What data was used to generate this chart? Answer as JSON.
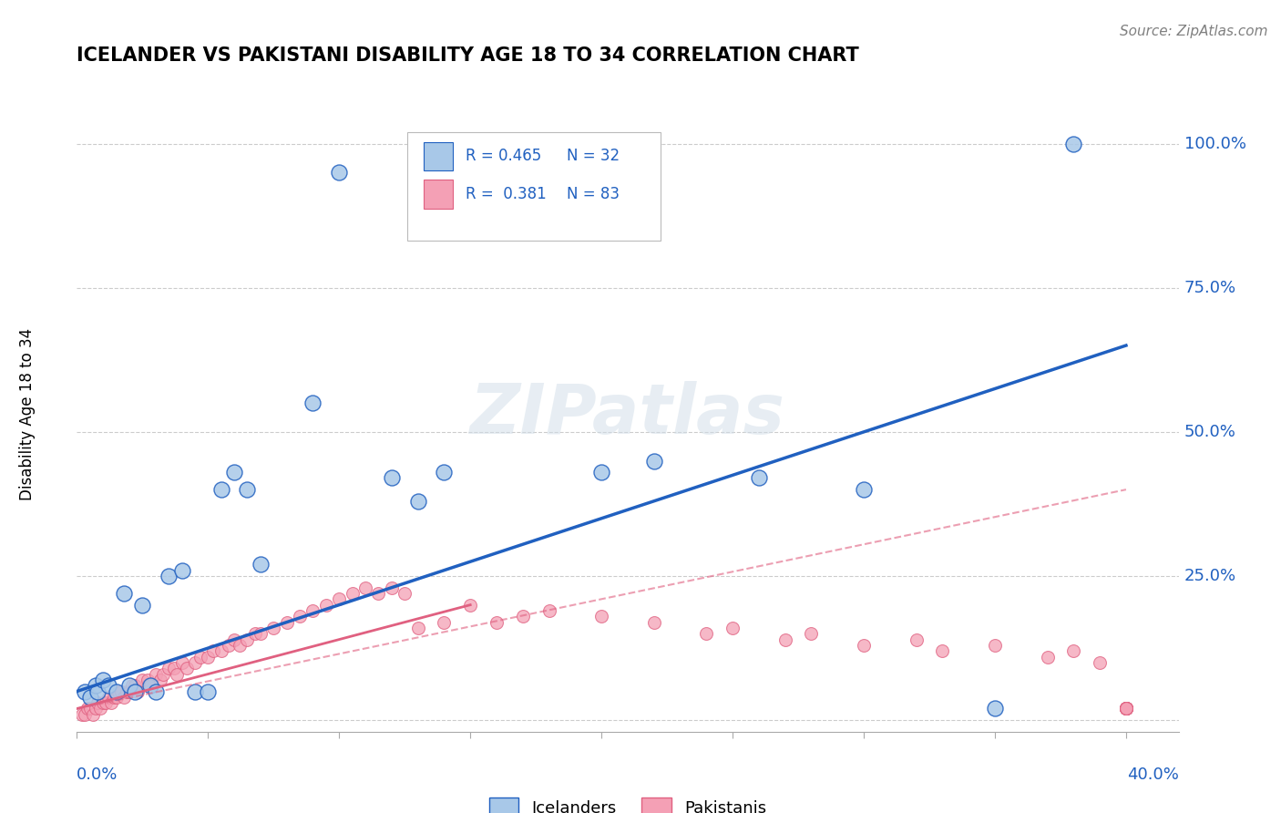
{
  "title": "ICELANDER VS PAKISTANI DISABILITY AGE 18 TO 34 CORRELATION CHART",
  "source": "Source: ZipAtlas.com",
  "ylabel": "Disability Age 18 to 34",
  "xlim": [
    0.0,
    0.42
  ],
  "ylim": [
    -0.02,
    1.08
  ],
  "r_icelander": 0.465,
  "n_icelander": 32,
  "r_pakistani": 0.381,
  "n_pakistani": 83,
  "icelander_color": "#a8c8e8",
  "pakistani_color": "#f4a0b5",
  "icelander_line_color": "#2060c0",
  "pakistani_line_color": "#e06080",
  "background_color": "#ffffff",
  "grid_color": "#cccccc",
  "watermark": "ZIPatlas",
  "icelander_scatter_x": [
    0.003,
    0.005,
    0.007,
    0.008,
    0.01,
    0.012,
    0.015,
    0.018,
    0.02,
    0.022,
    0.025,
    0.028,
    0.03,
    0.035,
    0.04,
    0.045,
    0.05,
    0.055,
    0.06,
    0.065,
    0.07,
    0.09,
    0.1,
    0.12,
    0.13,
    0.14,
    0.2,
    0.22,
    0.26,
    0.3,
    0.35,
    0.38
  ],
  "icelander_scatter_y": [
    0.05,
    0.04,
    0.06,
    0.05,
    0.07,
    0.06,
    0.05,
    0.22,
    0.06,
    0.05,
    0.2,
    0.06,
    0.05,
    0.25,
    0.26,
    0.05,
    0.05,
    0.4,
    0.43,
    0.4,
    0.27,
    0.55,
    0.95,
    0.42,
    0.38,
    0.43,
    0.43,
    0.45,
    0.42,
    0.4,
    0.02,
    1.0
  ],
  "pakistani_scatter_x": [
    0.002,
    0.003,
    0.004,
    0.005,
    0.006,
    0.007,
    0.008,
    0.009,
    0.01,
    0.011,
    0.012,
    0.013,
    0.014,
    0.015,
    0.016,
    0.017,
    0.018,
    0.019,
    0.02,
    0.021,
    0.022,
    0.023,
    0.025,
    0.027,
    0.028,
    0.03,
    0.032,
    0.033,
    0.035,
    0.037,
    0.038,
    0.04,
    0.042,
    0.045,
    0.047,
    0.05,
    0.052,
    0.055,
    0.058,
    0.06,
    0.062,
    0.065,
    0.068,
    0.07,
    0.075,
    0.08,
    0.085,
    0.09,
    0.095,
    0.1,
    0.105,
    0.11,
    0.115,
    0.12,
    0.125,
    0.13,
    0.14,
    0.15,
    0.16,
    0.17,
    0.18,
    0.2,
    0.22,
    0.24,
    0.25,
    0.27,
    0.28,
    0.3,
    0.32,
    0.33,
    0.35,
    0.37,
    0.38,
    0.39,
    0.4,
    0.4,
    0.4,
    0.4,
    0.4,
    0.4,
    0.4,
    0.4,
    0.4
  ],
  "pakistani_scatter_y": [
    0.01,
    0.01,
    0.02,
    0.02,
    0.01,
    0.02,
    0.03,
    0.02,
    0.03,
    0.03,
    0.04,
    0.03,
    0.04,
    0.04,
    0.05,
    0.05,
    0.04,
    0.05,
    0.05,
    0.06,
    0.06,
    0.05,
    0.07,
    0.07,
    0.06,
    0.08,
    0.07,
    0.08,
    0.09,
    0.09,
    0.08,
    0.1,
    0.09,
    0.1,
    0.11,
    0.11,
    0.12,
    0.12,
    0.13,
    0.14,
    0.13,
    0.14,
    0.15,
    0.15,
    0.16,
    0.17,
    0.18,
    0.19,
    0.2,
    0.21,
    0.22,
    0.23,
    0.22,
    0.23,
    0.22,
    0.16,
    0.17,
    0.2,
    0.17,
    0.18,
    0.19,
    0.18,
    0.17,
    0.15,
    0.16,
    0.14,
    0.15,
    0.13,
    0.14,
    0.12,
    0.13,
    0.11,
    0.12,
    0.1,
    0.02,
    0.02,
    0.02,
    0.02,
    0.02,
    0.02,
    0.02,
    0.02,
    0.02
  ],
  "icelander_trend_x0": 0.0,
  "icelander_trend_y0": 0.05,
  "icelander_trend_x1": 0.4,
  "icelander_trend_y1": 0.65,
  "pakistani_trend_solid_x0": 0.0,
  "pakistani_trend_solid_y0": 0.02,
  "pakistani_trend_solid_x1": 0.15,
  "pakistani_trend_solid_y1": 0.2,
  "pakistani_trend_dashed_x0": 0.0,
  "pakistani_trend_dashed_y0": 0.02,
  "pakistani_trend_dashed_x1": 0.4,
  "pakistani_trend_dashed_y1": 0.4
}
